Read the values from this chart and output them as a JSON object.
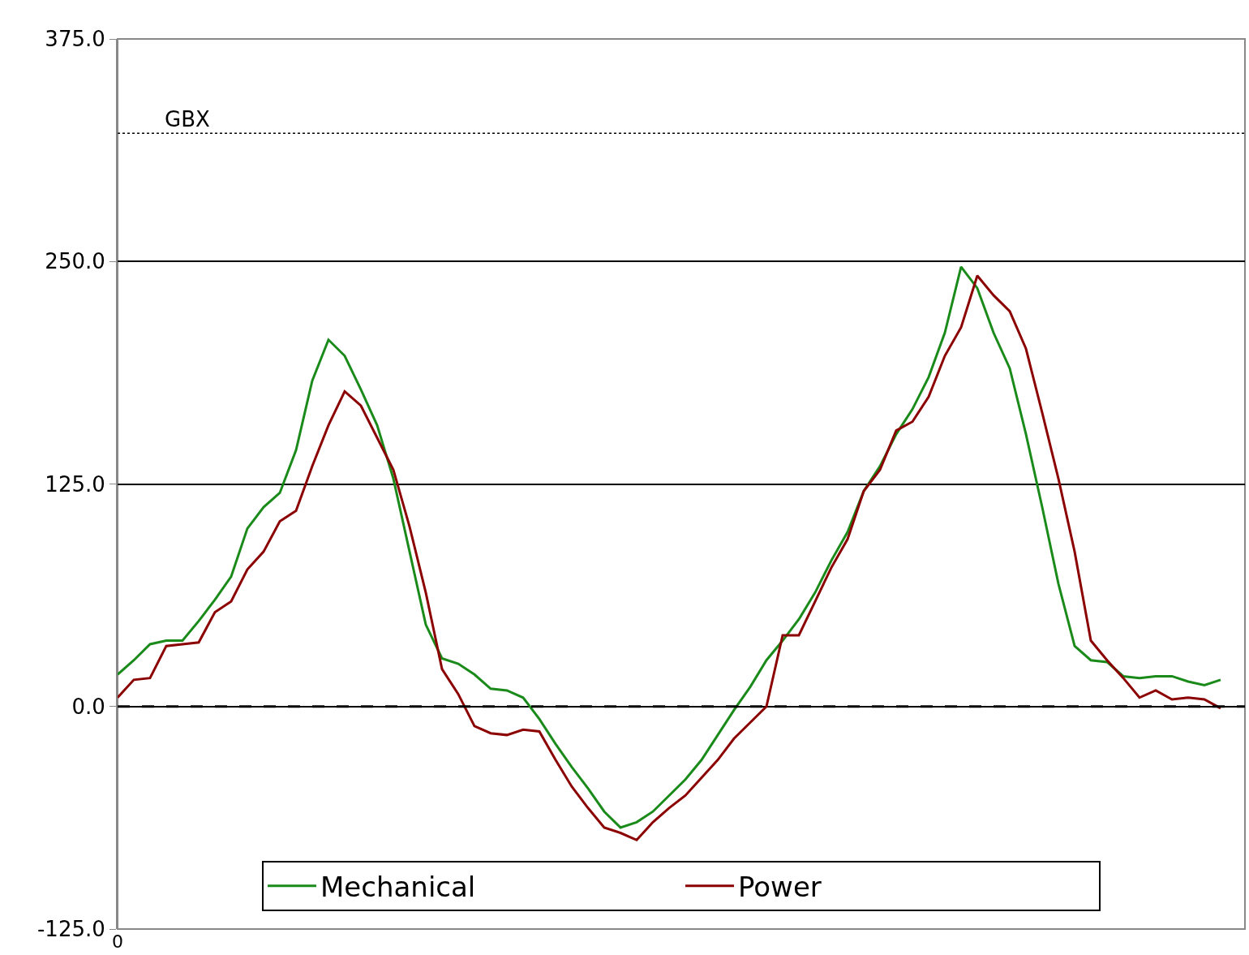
{
  "chart_data": {
    "type": "line",
    "categories": [
      "0",
      null,
      null,
      null,
      null,
      null,
      null,
      null,
      null,
      null,
      null,
      null,
      null,
      null,
      null,
      null,
      null,
      null,
      null,
      null,
      null,
      null,
      null,
      null,
      null,
      null,
      null,
      null,
      null,
      null,
      null,
      null,
      null,
      null,
      null,
      null,
      null,
      null,
      null,
      null,
      null,
      null,
      null,
      null,
      null,
      null,
      null,
      null,
      null,
      null,
      null,
      null,
      null,
      null,
      null,
      null,
      null,
      null,
      null,
      null,
      null,
      null,
      null,
      null,
      null,
      null,
      null,
      null,
      null
    ],
    "series": [
      {
        "name": "Mechanical",
        "color": "#1a8a1a",
        "values": [
          18,
          26,
          35,
          37,
          37,
          48,
          60,
          73,
          100,
          112,
          120,
          144,
          183,
          206,
          197,
          178,
          158,
          128,
          87,
          46,
          27,
          24,
          18,
          10,
          9,
          5,
          -7,
          -21,
          -34,
          -46,
          -59,
          -68,
          -65,
          -59,
          -50,
          -41,
          -30,
          -16,
          -2,
          11,
          26,
          37,
          49,
          64,
          82,
          98,
          121,
          135,
          153,
          167,
          185,
          210,
          247,
          235,
          210,
          190,
          153,
          112,
          69,
          34,
          26,
          25,
          17,
          16,
          17,
          17,
          14,
          12,
          15
        ]
      },
      {
        "name": "Power",
        "color": "#8b0000",
        "values": [
          5,
          15,
          16,
          34,
          35,
          36,
          53,
          59,
          77,
          87,
          104,
          110,
          135,
          158,
          177,
          169,
          151,
          133,
          101,
          64,
          21,
          7,
          -11,
          -15,
          -16,
          -13,
          -14,
          -30,
          -45,
          -57,
          -68,
          -71,
          -75,
          -65,
          -57,
          -50,
          -40,
          -30,
          -18,
          -9,
          0,
          40,
          40,
          59,
          78,
          94,
          121,
          133,
          155,
          160,
          174,
          197,
          213,
          242,
          231,
          222,
          201,
          165,
          128,
          87,
          37,
          26,
          16,
          5,
          9,
          4,
          5,
          4,
          -1
        ]
      }
    ],
    "ylim": [
      -125,
      375
    ],
    "yticks": [
      {
        "value": -125,
        "label": "-125.0"
      },
      {
        "value": 0,
        "label": "0.0"
      },
      {
        "value": 125,
        "label": "125.0"
      },
      {
        "value": 250,
        "label": "250.0"
      },
      {
        "value": 375,
        "label": "375.0"
      }
    ],
    "grid": "y",
    "legend": "bottom",
    "marker": "none",
    "line_style": "solid",
    "ref_lines": [
      {
        "axis": "y",
        "value": 0,
        "label": null,
        "color": "#000000",
        "line_style": "longdash"
      },
      {
        "axis": "y",
        "value": 322,
        "label": "GBX",
        "color": "#000000",
        "line_style": "dot"
      }
    ]
  }
}
